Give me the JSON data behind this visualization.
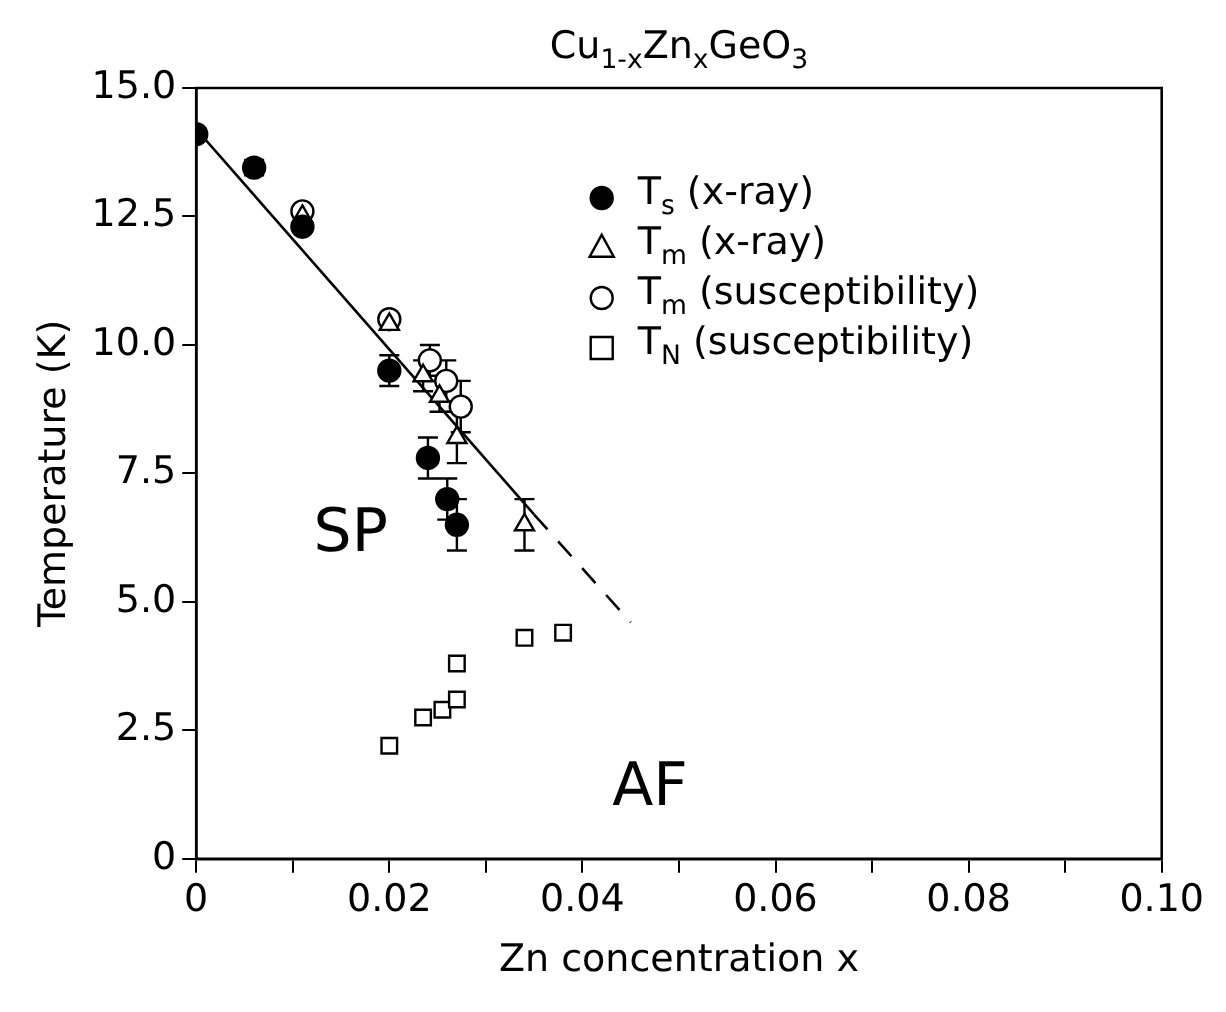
{
  "chart_data": {
    "type": "scatter",
    "title": "Cu$_{1-x}$Zn$_{x}$GeO$_{3}$",
    "xlabel": "Zn concentration x",
    "ylabel": "Temperature (K)",
    "xlim": [
      0,
      0.1
    ],
    "ylim": [
      0,
      15
    ],
    "xticks": [
      0,
      {
        "value": 0.01,
        "label": null
      },
      {
        "value": 0.02,
        "label": "0.02"
      },
      {
        "value": 0.03,
        "label": null
      },
      {
        "value": 0.04,
        "label": "0.04"
      },
      {
        "value": 0.05,
        "label": null
      },
      {
        "value": 0.06,
        "label": "0.06"
      },
      {
        "value": 0.07,
        "label": null
      },
      {
        "value": 0.08,
        "label": "0.08"
      },
      {
        "value": 0.09,
        "label": null
      },
      {
        "value": 0.1,
        "label": "0.10"
      }
    ],
    "yticks": [
      0,
      2.5,
      {
        "value": 5,
        "label": "5.0"
      },
      7.5,
      {
        "value": 10,
        "label": "10.0"
      },
      12.5,
      {
        "value": 15,
        "label": "15.0"
      }
    ],
    "grid": false,
    "legend": "top right",
    "series": [
      {
        "name": "T$_{s}$ (x-ray)",
        "marker": "circle",
        "color": "#000000",
        "x": [
          0,
          0.006,
          0.011,
          0.02,
          0.024,
          0.026,
          0.027
        ],
        "values": [
          14.1,
          13.45,
          12.3,
          9.5,
          7.8,
          7.0,
          6.5
        ],
        "errors": [
          null,
          0.15,
          null,
          0.3,
          0.4,
          0.4,
          0.5
        ]
      },
      {
        "name": "T$_{m}$ (x-ray)",
        "marker": "triangle",
        "color": "#ffffff",
        "x": [
          0.011,
          0.02,
          0.0235,
          0.0252,
          0.027,
          0.034
        ],
        "values": [
          12.5,
          10.4,
          9.4,
          9.0,
          8.2,
          6.5
        ],
        "errors": [
          null,
          null,
          0.3,
          0.3,
          0.5,
          0.5
        ]
      },
      {
        "name": "T$_{m}$ (susceptibility)",
        "marker": "circle",
        "color": "#ffffff",
        "x": [
          0.011,
          0.02,
          0.0242,
          0.0259,
          0.0274
        ],
        "values": [
          12.6,
          10.5,
          9.7,
          9.3,
          8.8
        ],
        "errors": [
          null,
          null,
          0.3,
          0.4,
          0.5
        ]
      },
      {
        "name": "T$_{N}$ (susceptibility)",
        "marker": "square",
        "color": "#ffffff",
        "x": [
          0.02,
          0.0235,
          0.0255,
          0.027,
          0.027,
          0.034,
          0.038
        ],
        "values": [
          2.2,
          2.75,
          2.9,
          3.1,
          3.8,
          4.3,
          4.4
        ]
      },
      {
        "type": "line",
        "marker": "none",
        "line_style": "solid",
        "color": "#000000",
        "x": [
          0,
          0.035
        ],
        "values": [
          14.2,
          6.7
        ]
      },
      {
        "type": "line",
        "marker": "none",
        "line_style": "dashed",
        "color": "#000000",
        "x": [
          0.035,
          0.045
        ],
        "values": [
          6.7,
          4.6
        ]
      }
    ],
    "annotations": [
      "SP",
      "AF"
    ]
  }
}
